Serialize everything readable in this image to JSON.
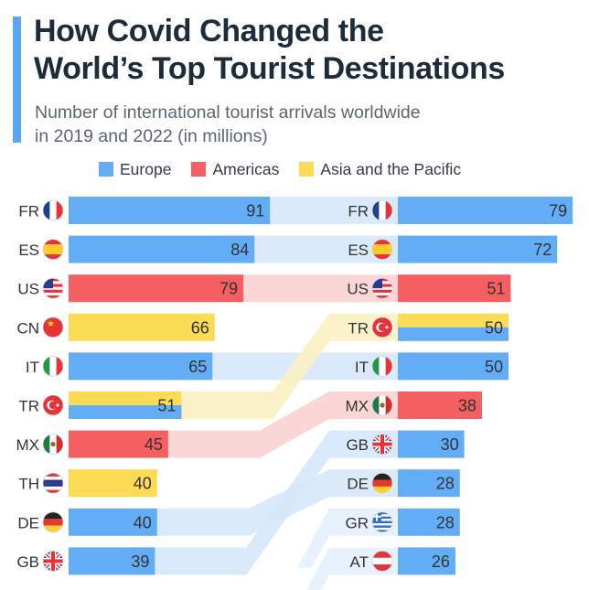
{
  "title_line1": "How Covid Changed the",
  "title_line2": "World’s Top Tourist Destinations",
  "subtitle_line1": "Number of international tourist arrivals worldwide",
  "subtitle_line2": "in 2019 and 2022 (in millions)",
  "legend": [
    {
      "label": "Europe",
      "color": "#62adf5"
    },
    {
      "label": "Americas",
      "color": "#f55f61"
    },
    {
      "label": "Asia and the Pacific",
      "color": "#fcdc55"
    }
  ],
  "chart_data": {
    "type": "bar",
    "title": "How Covid Changed the World’s Top Tourist Destinations",
    "subtitle": "Number of international tourist arrivals worldwide in 2019 and 2022 (in millions)",
    "unit": "millions",
    "region_colors": {
      "Europe": "#62adf5",
      "Americas": "#f55f61",
      "Asia and the Pacific": "#fcdc55"
    },
    "link_colors": {
      "Europe": "#d6e8fb",
      "Americas": "#f9d2d3",
      "Asia and the Pacific": "#fbf1c1"
    },
    "series": [
      {
        "name": "2019",
        "items": [
          {
            "code": "FR",
            "flag": "france-flag",
            "region": "Europe",
            "value": 91
          },
          {
            "code": "ES",
            "flag": "spain-flag",
            "region": "Europe",
            "value": 84
          },
          {
            "code": "US",
            "flag": "usa-flag",
            "region": "Americas",
            "value": 79
          },
          {
            "code": "CN",
            "flag": "china-flag",
            "region": "Asia and the Pacific",
            "value": 66
          },
          {
            "code": "IT",
            "flag": "italy-flag",
            "region": "Europe",
            "value": 65
          },
          {
            "code": "TR",
            "flag": "turkey-flag",
            "region": "Europe/Asia",
            "value": 51
          },
          {
            "code": "MX",
            "flag": "mexico-flag",
            "region": "Americas",
            "value": 45
          },
          {
            "code": "TH",
            "flag": "thailand-flag",
            "region": "Asia and the Pacific",
            "value": 40
          },
          {
            "code": "DE",
            "flag": "germany-flag",
            "region": "Europe",
            "value": 40
          },
          {
            "code": "GB",
            "flag": "uk-flag",
            "region": "Europe",
            "value": 39
          }
        ]
      },
      {
        "name": "2022",
        "items": [
          {
            "code": "FR",
            "flag": "france-flag",
            "region": "Europe",
            "value": 79
          },
          {
            "code": "ES",
            "flag": "spain-flag",
            "region": "Europe",
            "value": 72
          },
          {
            "code": "US",
            "flag": "usa-flag",
            "region": "Americas",
            "value": 51
          },
          {
            "code": "TR",
            "flag": "turkey-flag",
            "region": "Europe/Asia",
            "value": 50
          },
          {
            "code": "IT",
            "flag": "italy-flag",
            "region": "Europe",
            "value": 50
          },
          {
            "code": "MX",
            "flag": "mexico-flag",
            "region": "Americas",
            "value": 38
          },
          {
            "code": "GB",
            "flag": "uk-flag",
            "region": "Europe",
            "value": 30
          },
          {
            "code": "DE",
            "flag": "germany-flag",
            "region": "Europe",
            "value": 28
          },
          {
            "code": "GR",
            "flag": "greece-flag",
            "region": "Europe",
            "value": 28
          },
          {
            "code": "AT",
            "flag": "austria-flag",
            "region": "Europe",
            "value": 26
          }
        ]
      }
    ]
  }
}
